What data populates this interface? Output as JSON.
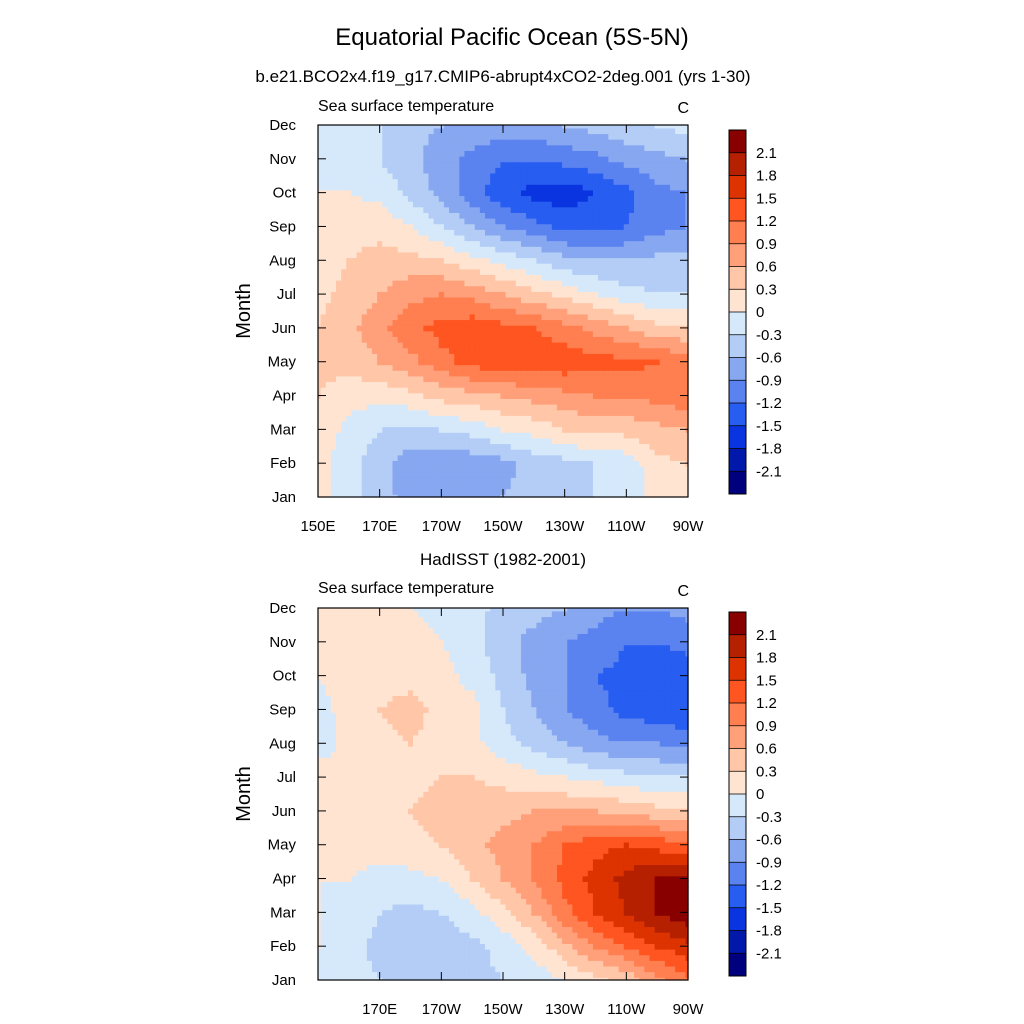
{
  "title": "Equatorial Pacific Ocean (5S-5N)",
  "colorbar": {
    "levels": [
      "2.1",
      "1.8",
      "1.5",
      "1.2",
      "0.9",
      "0.6",
      "0.3",
      "0",
      "-0.3",
      "-0.6",
      "-0.9",
      "-1.2",
      "-1.5",
      "-1.8",
      "-2.1"
    ],
    "colors": [
      "#880000",
      "#b52000",
      "#dd3300",
      "#ff5520",
      "#ff7f50",
      "#ffa07a",
      "#ffc6a8",
      "#ffe4d2",
      "#d6e9fb",
      "#b3cdf6",
      "#87a7f1",
      "#5a83f0",
      "#275df0",
      "#0a34e0",
      "#0019ab",
      "#00007e"
    ]
  },
  "chart_data": [
    {
      "type": "heatmap",
      "title": "b.e21.BCO2x4.f19_g17.CMIP6-abrupt4xCO2-2deg.001 (yrs 1-30)",
      "left_label": "Sea surface temperature",
      "right_label": "C",
      "xlabel": "",
      "ylabel": "Month",
      "x_ticks": [
        "150E",
        "170E",
        "170W",
        "150W",
        "130W",
        "110W",
        "90W"
      ],
      "y_ticks": [
        "Jan",
        "Feb",
        "Mar",
        "Apr",
        "May",
        "Jun",
        "Jul",
        "Aug",
        "Sep",
        "Oct",
        "Nov",
        "Dec"
      ],
      "x": [
        150,
        160,
        170,
        180,
        190,
        200,
        210,
        220,
        230,
        240,
        250,
        260,
        270
      ],
      "z": [
        [
          0.1,
          -0.2,
          -0.5,
          -0.7,
          -0.8,
          -0.7,
          -0.6,
          -0.5,
          -0.4,
          -0.3,
          -0.2,
          0.1,
          0.2
        ],
        [
          0.1,
          -0.2,
          -0.5,
          -0.8,
          -0.9,
          -0.8,
          -0.7,
          -0.5,
          -0.4,
          -0.3,
          -0.2,
          0.2,
          0.3
        ],
        [
          0.2,
          -0.1,
          -0.3,
          -0.4,
          -0.3,
          -0.2,
          0.0,
          0.1,
          0.3,
          0.4,
          0.4,
          0.5,
          0.6
        ],
        [
          0.3,
          0.1,
          0.1,
          0.2,
          0.4,
          0.5,
          0.6,
          0.7,
          0.8,
          0.9,
          0.9,
          1.0,
          1.1
        ],
        [
          0.4,
          0.4,
          0.6,
          0.8,
          1.1,
          1.3,
          1.4,
          1.4,
          1.4,
          1.3,
          1.3,
          1.2,
          1.1
        ],
        [
          0.3,
          0.5,
          0.8,
          1.1,
          1.3,
          1.4,
          1.3,
          1.2,
          1.0,
          0.8,
          0.6,
          0.4,
          0.3
        ],
        [
          0.2,
          0.4,
          0.6,
          0.8,
          0.9,
          0.8,
          0.6,
          0.4,
          0.2,
          0.0,
          -0.2,
          -0.3,
          -0.3
        ],
        [
          0.1,
          0.3,
          0.4,
          0.4,
          0.3,
          0.1,
          -0.1,
          -0.3,
          -0.5,
          -0.6,
          -0.6,
          -0.5,
          -0.5
        ],
        [
          0.0,
          0.2,
          0.2,
          0.0,
          -0.3,
          -0.6,
          -0.9,
          -1.1,
          -1.3,
          -1.3,
          -1.2,
          -1.0,
          -0.9
        ],
        [
          0.0,
          0.0,
          -0.1,
          -0.4,
          -0.7,
          -1.1,
          -1.4,
          -1.6,
          -1.7,
          -1.5,
          -1.3,
          -1.0,
          -0.9
        ],
        [
          -0.1,
          -0.2,
          -0.3,
          -0.5,
          -0.8,
          -1.0,
          -1.2,
          -1.2,
          -1.1,
          -1.0,
          -0.8,
          -0.7,
          -0.6
        ],
        [
          -0.1,
          -0.2,
          -0.3,
          -0.5,
          -0.6,
          -0.7,
          -0.7,
          -0.7,
          -0.6,
          -0.5,
          -0.4,
          -0.3,
          -0.2
        ]
      ],
      "zlim": [
        -2.25,
        2.25
      ]
    },
    {
      "type": "heatmap",
      "title": "HadISST (1982-2001)",
      "left_label": "Sea surface temperature",
      "right_label": "C",
      "xlabel": "",
      "ylabel": "Month",
      "x_ticks": [
        "170E",
        "170W",
        "150W",
        "130W",
        "110W",
        "90W"
      ],
      "y_ticks": [
        "Jan",
        "Feb",
        "Mar",
        "Apr",
        "May",
        "Jun",
        "Jul",
        "Aug",
        "Sep",
        "Oct",
        "Nov",
        "Dec"
      ],
      "x": [
        150,
        160,
        170,
        180,
        190,
        200,
        210,
        220,
        230,
        240,
        250,
        260,
        270
      ],
      "z": [
        [
          -0.1,
          -0.2,
          -0.3,
          -0.4,
          -0.4,
          -0.4,
          -0.3,
          -0.2,
          0.0,
          0.2,
          0.4,
          0.8,
          1.1
        ],
        [
          0.0,
          -0.2,
          -0.4,
          -0.5,
          -0.5,
          -0.4,
          -0.2,
          0.1,
          0.5,
          0.9,
          1.2,
          1.5,
          1.7
        ],
        [
          0.0,
          -0.1,
          -0.3,
          -0.4,
          -0.3,
          -0.1,
          0.2,
          0.6,
          1.1,
          1.5,
          1.8,
          2.1,
          2.3
        ],
        [
          0.0,
          0.0,
          -0.1,
          -0.1,
          0.0,
          0.3,
          0.6,
          0.9,
          1.3,
          1.6,
          1.9,
          2.1,
          2.2
        ],
        [
          0.1,
          0.1,
          0.1,
          0.2,
          0.3,
          0.5,
          0.7,
          0.9,
          1.2,
          1.4,
          1.5,
          1.4,
          1.2
        ],
        [
          0.2,
          0.2,
          0.2,
          0.3,
          0.4,
          0.5,
          0.5,
          0.6,
          0.6,
          0.6,
          0.5,
          0.4,
          0.3
        ],
        [
          0.2,
          0.1,
          0.2,
          0.2,
          0.3,
          0.3,
          0.2,
          0.1,
          0.0,
          -0.1,
          -0.2,
          -0.3,
          -0.3
        ],
        [
          -0.2,
          0.1,
          0.2,
          0.3,
          0.2,
          0.1,
          -0.2,
          -0.4,
          -0.6,
          -0.8,
          -0.9,
          -0.9,
          -1.0
        ],
        [
          -0.1,
          0.1,
          0.3,
          0.4,
          0.2,
          0.1,
          -0.3,
          -0.6,
          -0.9,
          -1.1,
          -1.3,
          -1.4,
          -1.5
        ],
        [
          0.0,
          0.1,
          0.2,
          0.2,
          0.1,
          -0.1,
          -0.4,
          -0.7,
          -0.9,
          -1.2,
          -1.3,
          -1.4,
          -1.4
        ],
        [
          0.1,
          0.1,
          0.1,
          0.1,
          0.0,
          -0.2,
          -0.5,
          -0.7,
          -0.9,
          -1.0,
          -1.2,
          -1.2,
          -1.1
        ],
        [
          0.1,
          0.1,
          0.1,
          0.0,
          -0.1,
          -0.2,
          -0.4,
          -0.5,
          -0.6,
          -0.8,
          -0.9,
          -0.9,
          -0.8
        ]
      ],
      "zlim": [
        -2.25,
        2.25
      ]
    }
  ]
}
